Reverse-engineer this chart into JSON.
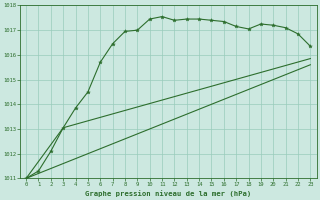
{
  "title": "Graphe pression niveau de la mer (hPa)",
  "bg_color": "#cce8e0",
  "grid_color": "#99ccbb",
  "line_color": "#2d6e2d",
  "xlim": [
    -0.5,
    23.5
  ],
  "ylim": [
    1011,
    1018
  ],
  "yticks": [
    1011,
    1012,
    1013,
    1014,
    1015,
    1016,
    1017,
    1018
  ],
  "xticks": [
    0,
    1,
    2,
    3,
    4,
    5,
    6,
    7,
    8,
    9,
    10,
    11,
    12,
    13,
    14,
    15,
    16,
    17,
    18,
    19,
    20,
    21,
    22,
    23
  ],
  "series1_x": [
    0,
    1,
    2,
    3,
    4,
    5,
    6,
    7,
    8,
    9,
    10,
    11,
    12,
    13,
    14,
    15,
    16,
    17,
    18,
    19,
    20,
    21,
    22,
    23
  ],
  "series1_y": [
    1011.0,
    1011.3,
    1012.1,
    1013.05,
    1013.85,
    1014.5,
    1015.7,
    1016.45,
    1016.95,
    1017.0,
    1017.45,
    1017.55,
    1017.4,
    1017.45,
    1017.45,
    1017.4,
    1017.35,
    1017.15,
    1017.05,
    1017.25,
    1017.2,
    1017.1,
    1016.85,
    1016.35
  ],
  "series2_x": [
    0,
    23
  ],
  "series2_y": [
    1011.0,
    1015.6
  ],
  "series3_x": [
    0,
    3,
    23
  ],
  "series3_y": [
    1011.0,
    1013.05,
    1015.85
  ]
}
